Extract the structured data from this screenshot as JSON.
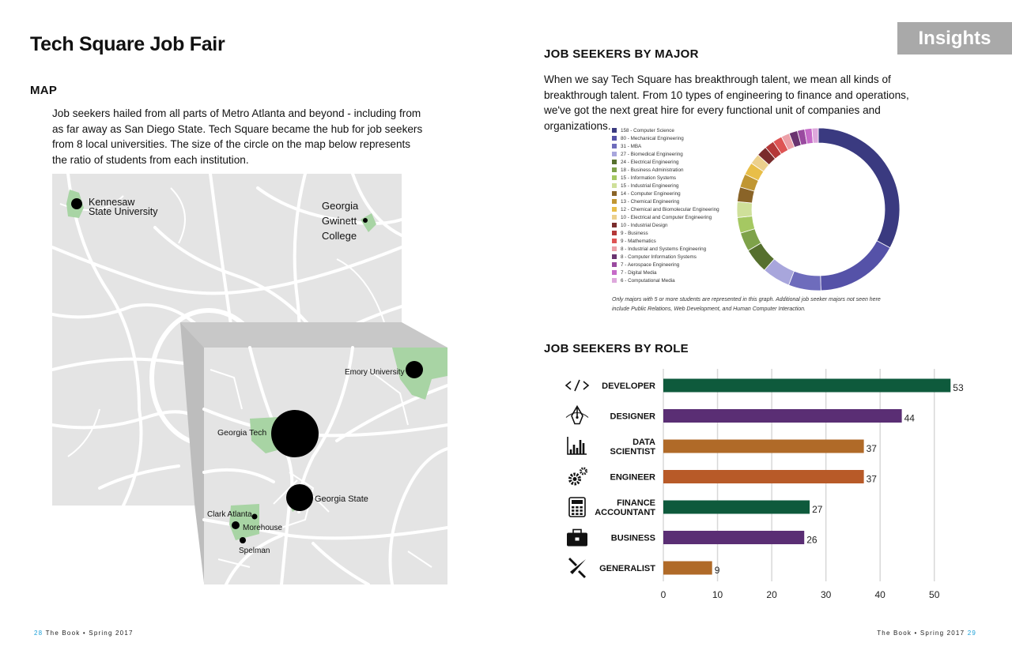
{
  "title": "Tech Square Job Fair",
  "insights": "Insights",
  "map": {
    "title": "MAP",
    "text": "Job seekers hailed from all parts of Metro Atlanta and beyond - including from as far away as San Diego State. Tech Square became the hub for job seekers from 8 local universities. The size of the circle on the map below represents the ratio of students from each institution.",
    "labels": {
      "kennesaw_1": "Kennesaw",
      "kennesaw_2": "State University",
      "ggc_1": "Georgia",
      "ggc_2": "Gwinett",
      "ggc_3": "College",
      "emory": "Emory University",
      "gatech": "Georgia Tech",
      "gastate": "Georgia State",
      "clark": "Clark Atlanta",
      "morehouse": "Morehouse",
      "spelman": "Spelman"
    }
  },
  "majors": {
    "title": "JOB SEEKERS BY MAJOR",
    "text": "When we say Tech Square has breakthrough talent, we mean all kinds of breakthrough talent. From 10 types of engineering to finance and operations, we've got the next great hire for every functional unit of companies and organizations.",
    "note": "Only majors with 5 or more students are represented in this graph. Additional job seeker majors not seen here include Public Relations, Web Development, and Human Computer Interaction.",
    "items": [
      {
        "label": "158 - Computer Science",
        "value": 158,
        "color": "#3a3a80"
      },
      {
        "label": "80 - Mechanical Engineering",
        "value": 80,
        "color": "#5552a8"
      },
      {
        "label": "31 - MBA",
        "value": 31,
        "color": "#6e6cbc"
      },
      {
        "label": "27 - Biomedical Engineering",
        "value": 27,
        "color": "#a8a6dc"
      },
      {
        "label": "24 - Electrical Engineering",
        "value": 24,
        "color": "#56702e"
      },
      {
        "label": "18 - Business Administration",
        "value": 18,
        "color": "#7ea24a"
      },
      {
        "label": "15 - Information Systems",
        "value": 15,
        "color": "#a5c862"
      },
      {
        "label": "15 - Industrial Engineering",
        "value": 15,
        "color": "#cfe09a"
      },
      {
        "label": "14 - Computer Engineering",
        "value": 14,
        "color": "#8a6428"
      },
      {
        "label": "13 - Chemical Engineering",
        "value": 13,
        "color": "#c09632"
      },
      {
        "label": "12 - Chemical and Biomolecular Engineering",
        "value": 12,
        "color": "#e8be48"
      },
      {
        "label": "10 - Electrical and Computer Engineering",
        "value": 10,
        "color": "#ecd08c"
      },
      {
        "label": "10 - Industrial Design",
        "value": 10,
        "color": "#7a2c2c"
      },
      {
        "label": "9 - Business",
        "value": 9,
        "color": "#b43838"
      },
      {
        "label": "9 - Mathematics",
        "value": 9,
        "color": "#de5454"
      },
      {
        "label": "8 - Industrial and Systems Engineering",
        "value": 8,
        "color": "#eca0a8"
      },
      {
        "label": "8 - Computer Information Systems",
        "value": 8,
        "color": "#6a3470"
      },
      {
        "label": "7 - Aerospace Engineering",
        "value": 7,
        "color": "#9a4aa0"
      },
      {
        "label": "7 - Digital Media",
        "value": 7,
        "color": "#c66ac8"
      },
      {
        "label": "6 - Computational Media",
        "value": 6,
        "color": "#dea8dc"
      }
    ]
  },
  "chart_data": {
    "type": "bar",
    "orientation": "horizontal",
    "title": "JOB SEEKERS BY ROLE",
    "categories": [
      "DEVELOPER",
      "DESIGNER",
      "DATA SCIENTIST",
      "ENGINEER",
      "FINANCE ACCOUNTANT",
      "BUSINESS",
      "GENERALIST"
    ],
    "category_lines": [
      [
        "DEVELOPER"
      ],
      [
        "DESIGNER"
      ],
      [
        "DATA",
        "SCIENTIST"
      ],
      [
        "ENGINEER"
      ],
      [
        "FINANCE",
        "ACCOUNTANT"
      ],
      [
        "BUSINESS"
      ],
      [
        "GENERALIST"
      ]
    ],
    "values": [
      53,
      44,
      37,
      37,
      27,
      26,
      9
    ],
    "colors": [
      "#0e5a3c",
      "#5a2e74",
      "#b06a28",
      "#b85a28",
      "#0e5a3c",
      "#5a2e74",
      "#b06a28"
    ],
    "icons": [
      "code-icon",
      "pen-nib-icon",
      "bar-chart-icon",
      "gears-icon",
      "calculator-icon",
      "briefcase-icon",
      "multitool-icon"
    ],
    "xticks": [
      0,
      10,
      20,
      30,
      40,
      50
    ],
    "xlim": [
      0,
      55
    ],
    "grid": true
  },
  "footer": {
    "left_page": "28",
    "left_text": "The Book • Spring 2017",
    "right_text": "The Book • Spring 2017",
    "right_page": "29"
  }
}
